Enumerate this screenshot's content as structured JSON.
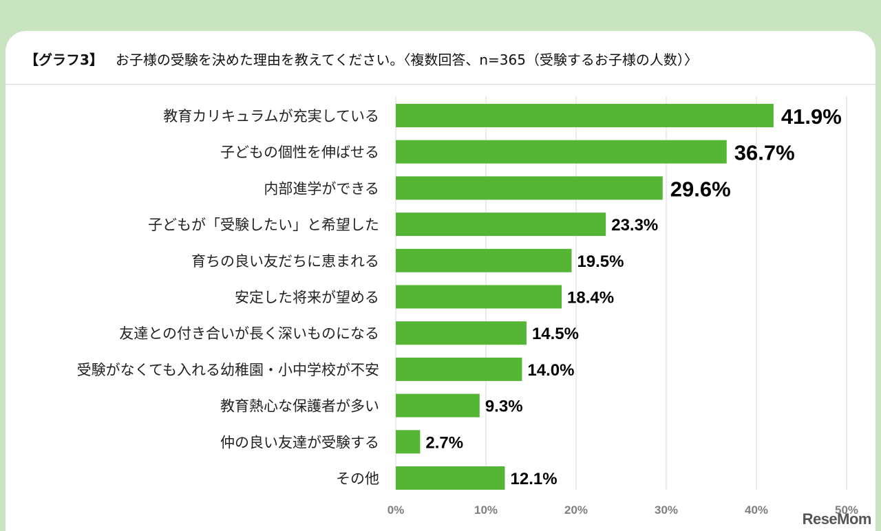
{
  "header": {
    "tag": "【グラフ3】",
    "text": "お子様の受験を決めた理由を教えてください。〈複数回答、n=365（受験するお子様の人数）〉"
  },
  "logo": "ReseMom",
  "colors": {
    "bar": "#55b535",
    "grid": "#d9d9d9",
    "background": "#c9e4c0"
  },
  "chart_data": {
    "type": "bar",
    "orientation": "horizontal",
    "categories": [
      "教育カリキュラムが充実している",
      "子どもの個性を伸ばせる",
      "内部進学ができる",
      "子どもが「受験したい」と希望した",
      "育ちの良い友だちに恵まれる",
      "安定した将来が望める",
      "友達との付き合いが長く深いものになる",
      "受験がなくても入れる幼稚園・小中学校が不安",
      "教育熱心な保護者が多い",
      "仲の良い友達が受験する",
      "その他"
    ],
    "values": [
      41.9,
      36.7,
      29.6,
      23.3,
      19.5,
      18.4,
      14.5,
      14.0,
      9.3,
      2.7,
      12.1
    ],
    "value_labels": [
      "41.9%",
      "36.7%",
      "29.6%",
      "23.3%",
      "19.5%",
      "18.4%",
      "14.5%",
      "14.0%",
      "9.3%",
      "2.7%",
      "12.1%"
    ],
    "xlim": [
      0,
      50
    ],
    "xticks": [
      "0%",
      "10%",
      "20%",
      "30%",
      "40%",
      "50%"
    ],
    "grid": true
  }
}
